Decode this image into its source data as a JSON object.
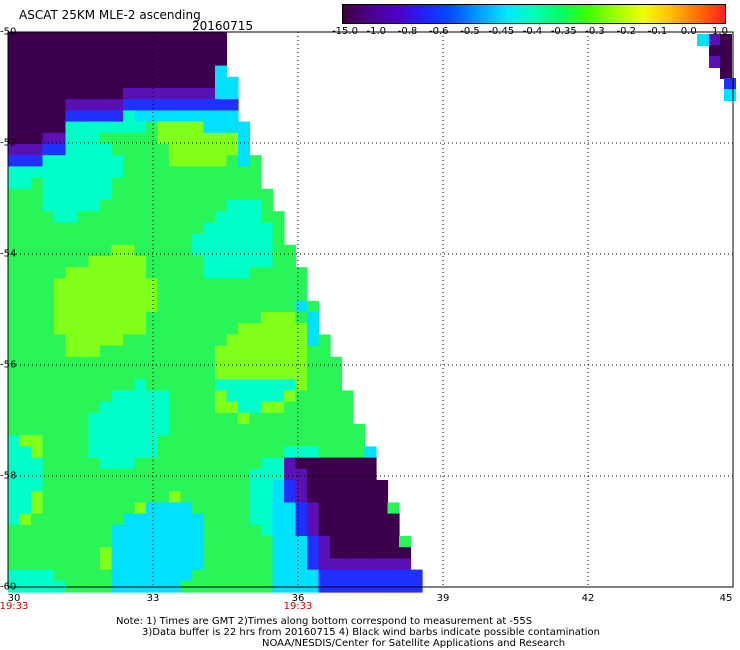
{
  "header": {
    "title": "ASCAT 25KM MLE-2 ascending",
    "date": "20160715"
  },
  "colorbar": {
    "labels": [
      "-15.0",
      "-1.0",
      "-0.8",
      "-0.6",
      "-0.5",
      "-0.45",
      "-0.4",
      "-0.35",
      "-0.3",
      "-0.2",
      "-0.1",
      "0.0",
      "1.0"
    ],
    "colors": [
      "#3d003d",
      "#4b008c",
      "#4d00c8",
      "#2020ff",
      "#0050ff",
      "#00a0ff",
      "#00e8ff",
      "#00ffb8",
      "#00ff60",
      "#40ff00",
      "#a0ff00",
      "#f0ff00",
      "#ffc000",
      "#ff7000",
      "#ff2020"
    ]
  },
  "map": {
    "y_axis": {
      "labels": [
        "-50",
        "-52",
        "-54",
        "-56",
        "-58",
        "-60"
      ],
      "range": [
        -60,
        -50
      ]
    },
    "x_axis": {
      "labels": [
        "30",
        "33",
        "36",
        "39",
        "42",
        "45"
      ],
      "range": [
        30,
        45
      ]
    },
    "time_labels": [
      {
        "lon": 30,
        "text": "19:33"
      },
      {
        "lon": 36,
        "text": "19:33"
      }
    ],
    "colors": {
      "dark": "#3d004d",
      "purple": "#5a10b4",
      "blue": "#2030ff",
      "cyan": "#00e0ff",
      "aqua": "#00ffc8",
      "green": "#28f558",
      "lime": "#80ff18"
    }
  },
  "notes": {
    "line1": "Note: 1) Times are GMT 2)Times along bottom correspond to measurement at -55S",
    "line2": "3)Data buffer is 22 hrs from 20160715 4) Black wind barbs indicate possible contamination",
    "line3": "NOAA/NESDIS/Center for Satellite Applications and Research"
  }
}
